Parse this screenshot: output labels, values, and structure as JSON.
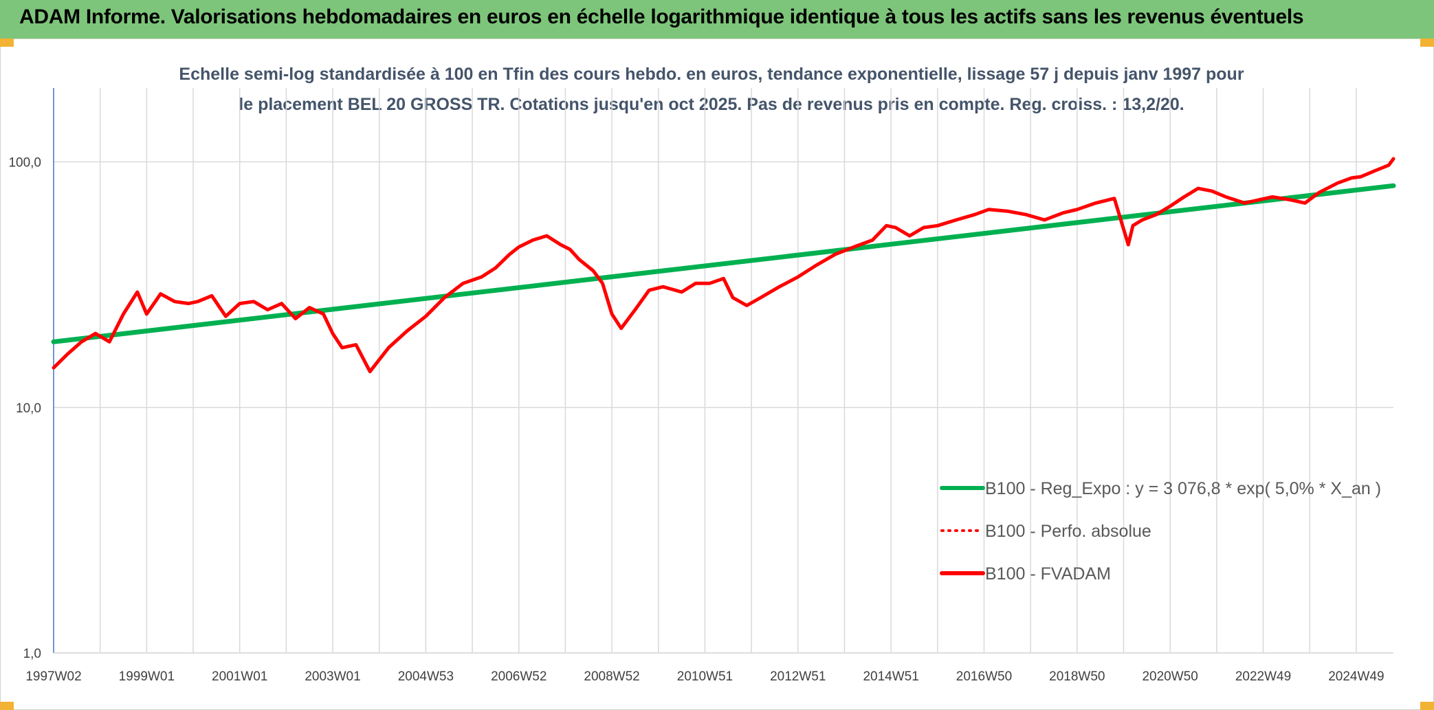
{
  "banner": {
    "title": "ADAM Informe. Valorisations hebdomadaires en euros en échelle logarithmique identique à tous les actifs sans les revenus éventuels"
  },
  "chart_data": {
    "type": "line",
    "title": "Echelle semi-log standardisée à 100 en Tfin des cours hebdo. en euros, tendance exponentielle, lissage 57 j depuis janv 1997 pour le placement BEL 20 GROSS TR. Cotations jusqu'en oct 2025. Pas de revenus pris en compte. Reg. croiss. : 13,2/20.",
    "xlabel": "",
    "ylabel": "",
    "y_scale": "log",
    "ylim": [
      1,
      200
    ],
    "y_ticks": [
      {
        "value": 1,
        "label": "1,0"
      },
      {
        "value": 10,
        "label": "10,0"
      },
      {
        "value": 100,
        "label": "100,0"
      }
    ],
    "x_range": [
      1997.0,
      2025.8
    ],
    "x_tick_labels": [
      "1997W02",
      "1999W01",
      "2001W01",
      "2003W01",
      "2004W53",
      "2006W52",
      "2008W52",
      "2010W51",
      "2012W51",
      "2014W51",
      "2016W50",
      "2018W50",
      "2020W50",
      "2022W49",
      "2024W49"
    ],
    "x_tick_positions": [
      1997.0,
      1999.0,
      2001.0,
      2003.0,
      2005.0,
      2007.0,
      2009.0,
      2011.0,
      2013.0,
      2015.0,
      2017.0,
      2019.0,
      2021.0,
      2023.0,
      2025.0
    ],
    "grid": true,
    "legend_position": "bottom-right",
    "series": [
      {
        "name": "B100 - Reg_Expo : y = 3 076,8 * exp( 5,0% *  X_an )",
        "color": "#00b050",
        "style": "solid",
        "x": [
          1997.0,
          2025.8
        ],
        "y": [
          18.5,
          80.0
        ]
      },
      {
        "name": "B100 - Perfo. absolue",
        "color": "#ff0000",
        "style": "dotted",
        "x": [],
        "y": []
      },
      {
        "name": "B100 - FVADAM",
        "color": "#ff0000",
        "style": "solid",
        "x": [
          1997.0,
          1997.3,
          1997.6,
          1997.9,
          1998.2,
          1998.5,
          1998.8,
          1999.0,
          1999.3,
          1999.6,
          1999.9,
          2000.1,
          2000.4,
          2000.7,
          2001.0,
          2001.3,
          2001.6,
          2001.9,
          2002.2,
          2002.5,
          2002.8,
          2003.0,
          2003.2,
          2003.5,
          2003.8,
          2004.2,
          2004.6,
          2005.0,
          2005.4,
          2005.8,
          2006.2,
          2006.5,
          2006.8,
          2007.0,
          2007.3,
          2007.6,
          2007.9,
          2008.1,
          2008.3,
          2008.6,
          2008.8,
          2009.0,
          2009.2,
          2009.5,
          2009.8,
          2010.1,
          2010.5,
          2010.8,
          2011.1,
          2011.4,
          2011.6,
          2011.9,
          2012.2,
          2012.6,
          2013.0,
          2013.4,
          2013.8,
          2014.2,
          2014.6,
          2014.9,
          2015.1,
          2015.4,
          2015.7,
          2016.0,
          2016.4,
          2016.8,
          2017.1,
          2017.5,
          2017.9,
          2018.3,
          2018.7,
          2019.0,
          2019.4,
          2019.8,
          2020.1,
          2020.2,
          2020.4,
          2020.7,
          2021.0,
          2021.3,
          2021.6,
          2021.9,
          2022.2,
          2022.6,
          2022.9,
          2023.2,
          2023.6,
          2023.9,
          2024.2,
          2024.6,
          2024.9,
          2025.1,
          2025.4,
          2025.7,
          2025.8
        ],
        "y": [
          14.5,
          16.5,
          18.5,
          20.0,
          18.5,
          24.0,
          29.5,
          24.0,
          29.0,
          27.0,
          26.5,
          27.0,
          28.5,
          23.5,
          26.5,
          27.0,
          25.0,
          26.5,
          23.0,
          25.5,
          24.0,
          20.0,
          17.5,
          18.0,
          14.0,
          17.5,
          20.5,
          23.5,
          28.0,
          32.0,
          34.0,
          37.0,
          42.0,
          45.0,
          48.0,
          50.0,
          46.0,
          44.0,
          40.0,
          36.0,
          32.0,
          24.0,
          21.0,
          25.0,
          30.0,
          31.0,
          29.5,
          32.0,
          32.0,
          33.5,
          28.0,
          26.0,
          28.0,
          31.0,
          34.0,
          38.0,
          42.0,
          45.0,
          48.0,
          55.0,
          54.0,
          50.0,
          54.0,
          55.0,
          58.0,
          61.0,
          64.0,
          63.0,
          61.0,
          58.0,
          62.0,
          64.0,
          68.0,
          71.0,
          46.0,
          55.0,
          58.0,
          61.0,
          66.0,
          72.0,
          78.0,
          76.0,
          72.0,
          68.0,
          70.0,
          72.0,
          70.0,
          68.0,
          75.0,
          82.0,
          86.0,
          87.0,
          92.0,
          97.0,
          103.0
        ]
      }
    ]
  }
}
